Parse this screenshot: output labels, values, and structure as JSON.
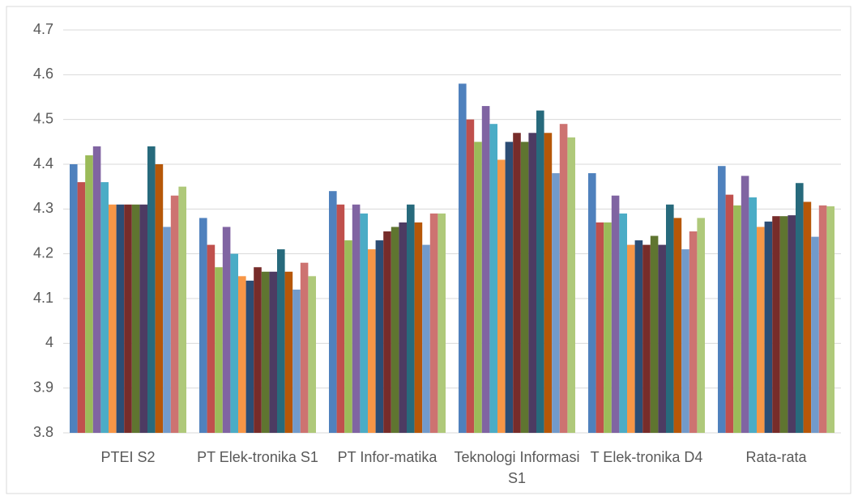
{
  "chart_data": {
    "type": "bar",
    "categories": [
      "PTEI S2",
      "PT Elek-tronika S1",
      "PT Infor-matika",
      "Teknologi Informasi S1",
      "T Elek-tronika D4",
      "Rata-rata"
    ],
    "series": [
      {
        "color": "#4f81bd",
        "values": [
          4.4,
          4.28,
          4.34,
          4.58,
          4.38,
          4.396
        ]
      },
      {
        "color": "#c0504d",
        "values": [
          4.36,
          4.22,
          4.31,
          4.5,
          4.27,
          4.332
        ]
      },
      {
        "color": "#9bbb59",
        "values": [
          4.42,
          4.17,
          4.23,
          4.45,
          4.27,
          4.308
        ]
      },
      {
        "color": "#8064a2",
        "values": [
          4.44,
          4.26,
          4.31,
          4.53,
          4.33,
          4.374
        ]
      },
      {
        "color": "#4bacc6",
        "values": [
          4.36,
          4.2,
          4.29,
          4.49,
          4.29,
          4.326
        ]
      },
      {
        "color": "#f79646",
        "values": [
          4.31,
          4.15,
          4.21,
          4.41,
          4.22,
          4.26
        ]
      },
      {
        "color": "#2c4d75",
        "values": [
          4.31,
          4.14,
          4.23,
          4.45,
          4.23,
          4.272
        ]
      },
      {
        "color": "#772c2a",
        "values": [
          4.31,
          4.17,
          4.25,
          4.47,
          4.22,
          4.284
        ]
      },
      {
        "color": "#5f7530",
        "values": [
          4.31,
          4.16,
          4.26,
          4.45,
          4.24,
          4.284
        ]
      },
      {
        "color": "#4d3b62",
        "values": [
          4.31,
          4.16,
          4.27,
          4.47,
          4.22,
          4.286
        ]
      },
      {
        "color": "#276a7c",
        "values": [
          4.44,
          4.21,
          4.31,
          4.52,
          4.31,
          4.358
        ]
      },
      {
        "color": "#b65708",
        "values": [
          4.4,
          4.16,
          4.27,
          4.47,
          4.28,
          4.316
        ]
      },
      {
        "color": "#729aca",
        "values": [
          4.26,
          4.12,
          4.22,
          4.38,
          4.21,
          4.238
        ]
      },
      {
        "color": "#cd7371",
        "values": [
          4.33,
          4.18,
          4.29,
          4.49,
          4.25,
          4.308
        ]
      },
      {
        "color": "#afc97a",
        "values": [
          4.35,
          4.15,
          4.29,
          4.46,
          4.28,
          4.306
        ]
      }
    ],
    "ylim": [
      3.8,
      4.7
    ],
    "yticks": [
      3.8,
      3.9,
      4,
      4.1,
      4.2,
      4.3,
      4.4,
      4.5,
      4.6,
      4.7
    ],
    "grid": true
  }
}
